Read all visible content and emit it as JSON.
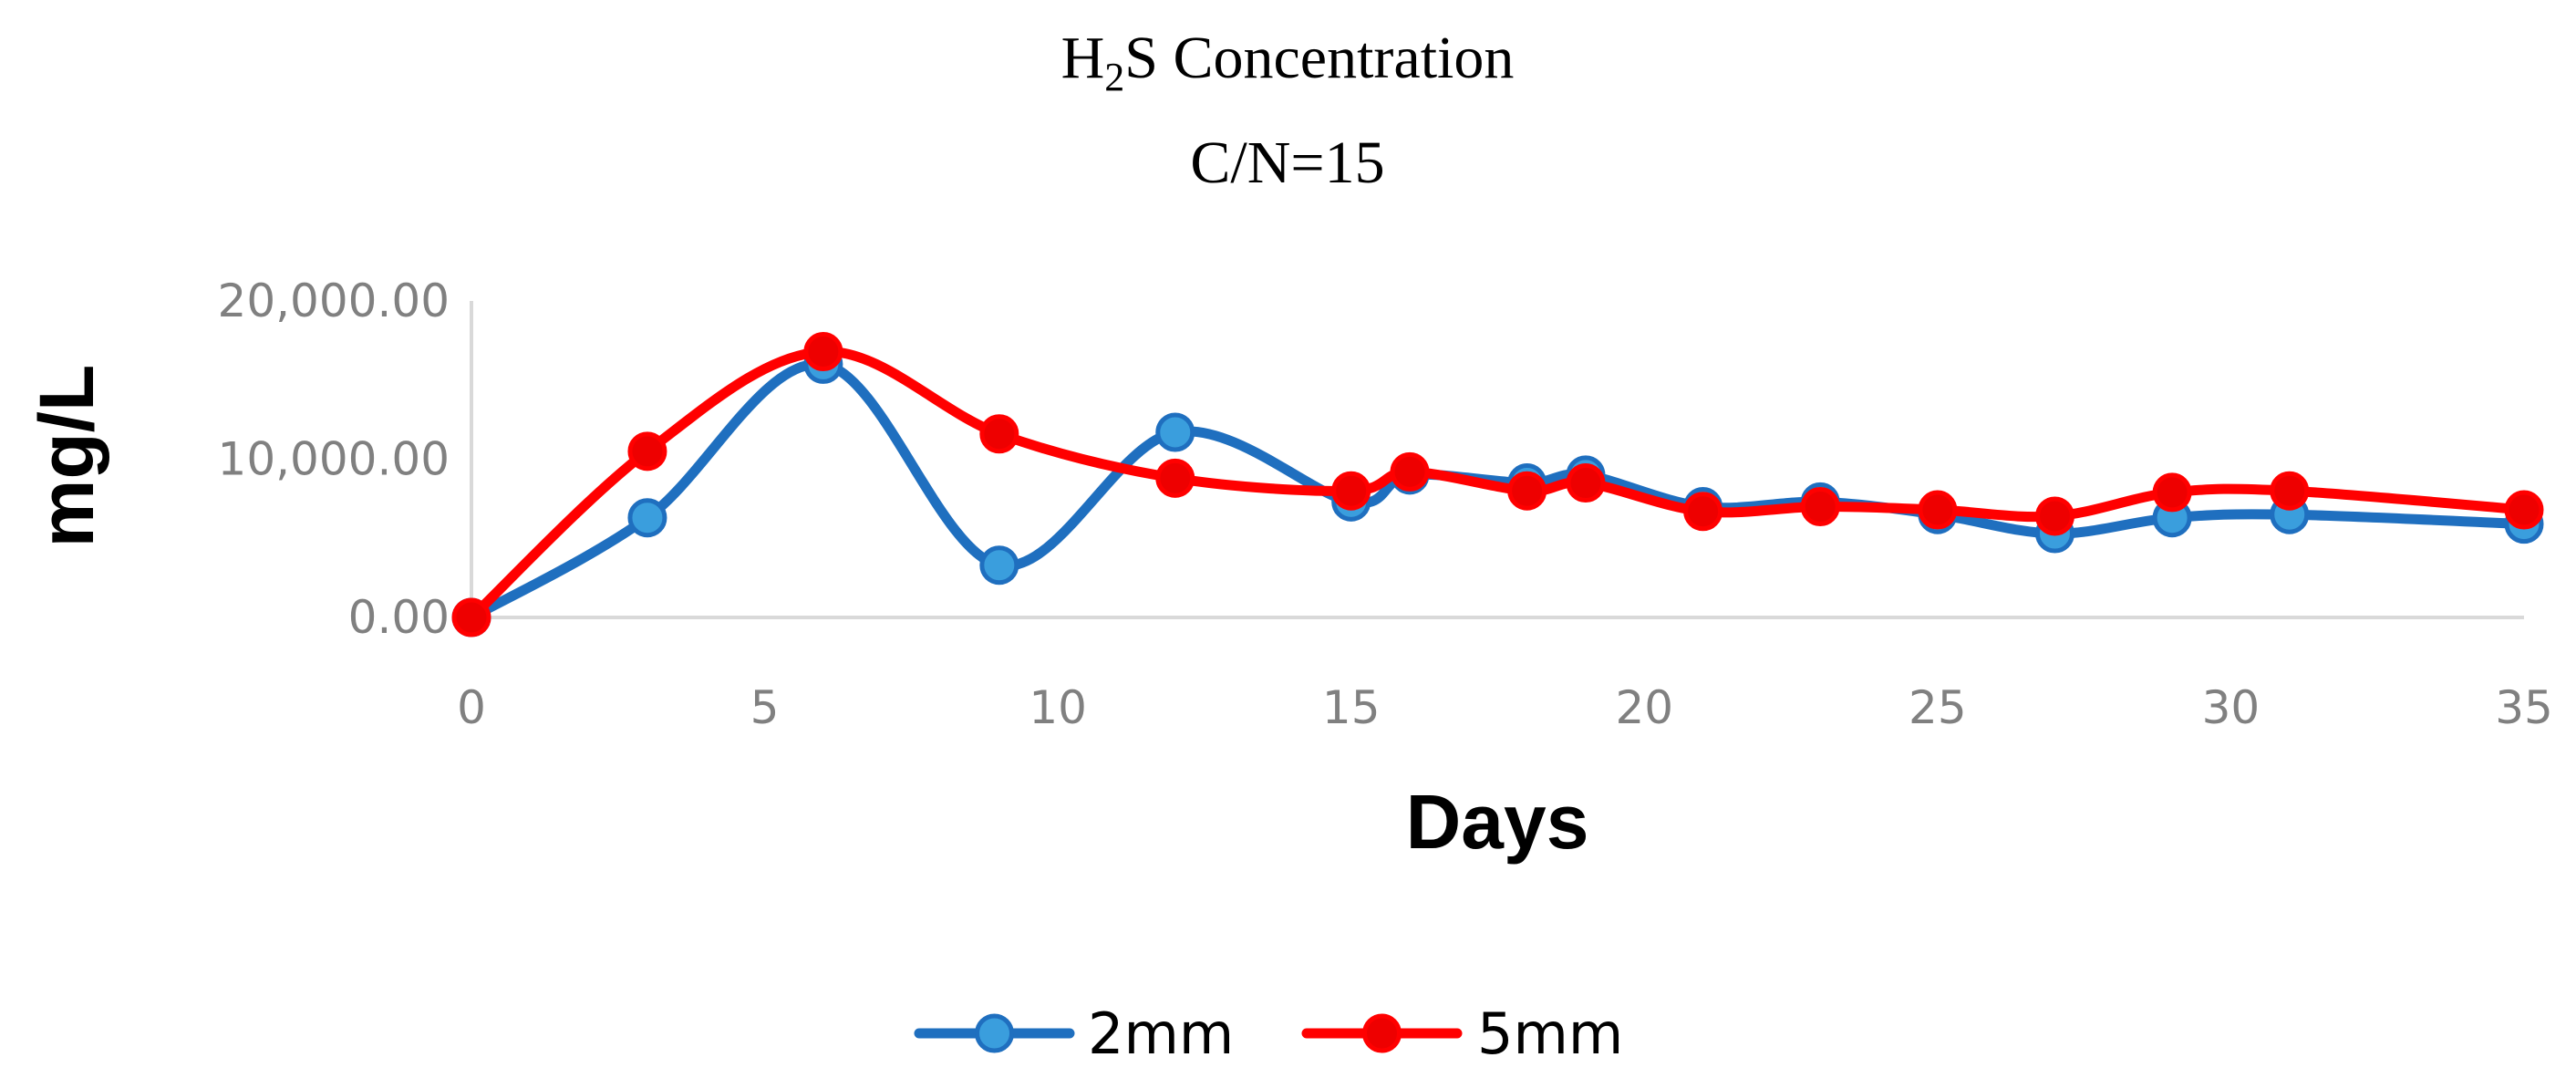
{
  "chart_data": {
    "type": "line",
    "title": {
      "main_prefix": "H",
      "main_subscript": "2",
      "main_suffix": "S Concentration",
      "subtitle": "C/N=15"
    },
    "xlabel": "Days",
    "ylabel": "mg/L",
    "xlim": [
      0,
      35
    ],
    "ylim": [
      0,
      20000
    ],
    "x_ticks": [
      0,
      5,
      10,
      15,
      20,
      25,
      30,
      35
    ],
    "y_ticks": [
      0,
      10000,
      20000
    ],
    "y_tick_labels": [
      "0.00",
      "10,000.00",
      "20,000.00"
    ],
    "x_tick_labels": [
      "0",
      "5",
      "10",
      "15",
      "20",
      "25",
      "30",
      "35"
    ],
    "grid": false,
    "smooth": true,
    "legend_position": "bottom",
    "series": [
      {
        "name": "2mm",
        "color": "#1F6FBF",
        "marker_fill": "#3A9EDD",
        "x": [
          0,
          3,
          6,
          9,
          12,
          15,
          16,
          18,
          19,
          21,
          23,
          25,
          27,
          29,
          31,
          35
        ],
        "values": [
          0,
          6300,
          16000,
          3300,
          11700,
          7300,
          9000,
          8500,
          9000,
          7000,
          7300,
          6500,
          5300,
          6300,
          6500,
          5900
        ]
      },
      {
        "name": "5mm",
        "color": "#FF0000",
        "marker_fill": "#EE0000",
        "x": [
          0,
          3,
          6,
          9,
          12,
          15,
          16,
          18,
          19,
          21,
          23,
          25,
          27,
          29,
          31,
          35
        ],
        "values": [
          0,
          10500,
          16800,
          11600,
          8800,
          8000,
          9200,
          8000,
          8500,
          6700,
          7000,
          6800,
          6400,
          7900,
          8000,
          6800
        ]
      }
    ]
  }
}
